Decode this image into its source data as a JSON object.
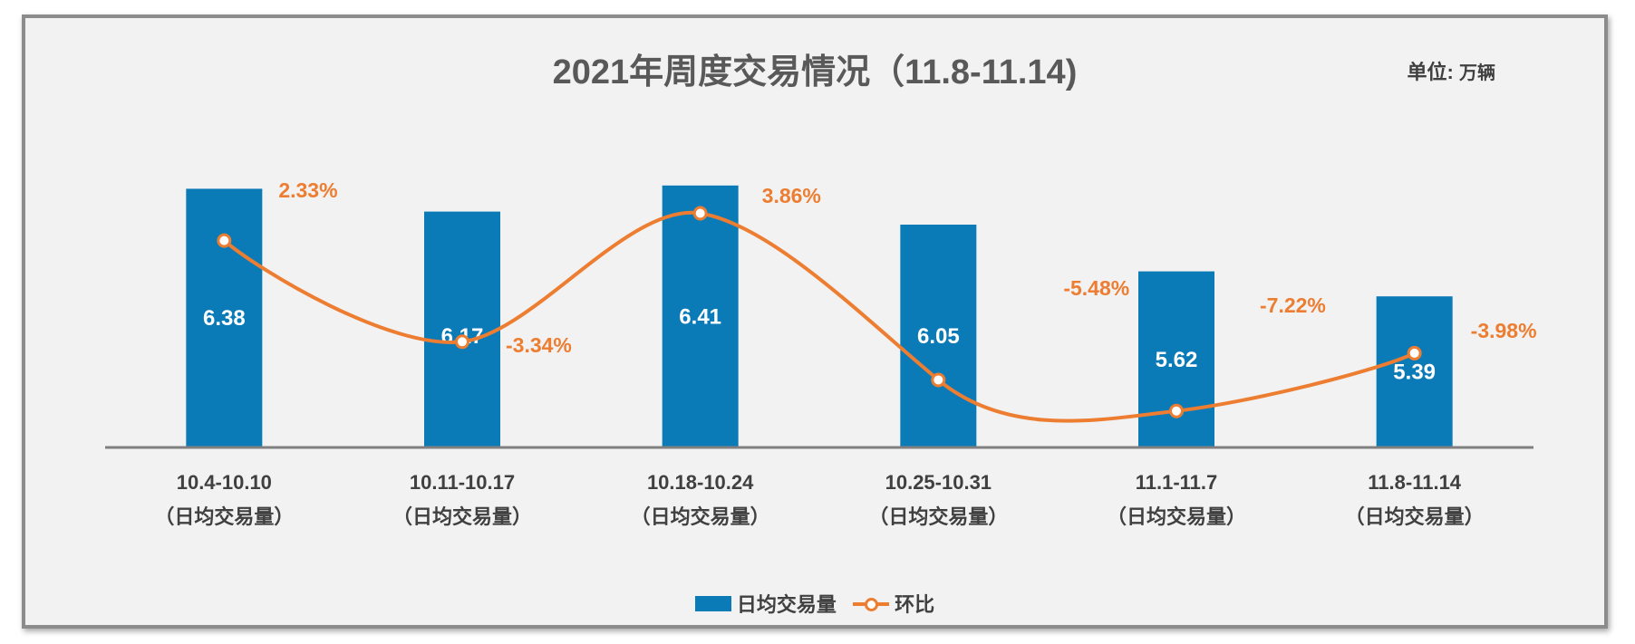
{
  "chart_data": {
    "type": "bar",
    "title": "2021年周度交易情况（11.8-11.14)",
    "unit_label": "单位:",
    "unit_value": "万辆",
    "categories": [
      "10.4-10.10",
      "10.11-10.17",
      "10.18-10.24",
      "10.25-10.31",
      "11.1-11.7",
      "11.8-11.14"
    ],
    "category_sublabel": "（日均交易量）",
    "series": [
      {
        "name": "日均交易量",
        "type": "bar",
        "color": "#0b7bb8",
        "values": [
          6.38,
          6.17,
          6.41,
          6.05,
          5.62,
          5.39
        ],
        "labels": [
          "6.38",
          "6.17",
          "6.41",
          "6.05",
          "5.62",
          "5.39"
        ]
      },
      {
        "name": "环比",
        "type": "line",
        "color": "#ed7d31",
        "values": [
          2.33,
          -3.34,
          3.86,
          -5.48,
          -7.22,
          -3.98
        ],
        "labels": [
          "2.33%",
          "-3.34%",
          "3.86%",
          "-5.48%",
          "-7.22%",
          "-3.98%"
        ]
      }
    ],
    "bar_axis_range": [
      4.0,
      6.45
    ],
    "line_axis_range": [
      -8.3,
      4.9
    ],
    "legend": "bottom",
    "grid": false
  }
}
